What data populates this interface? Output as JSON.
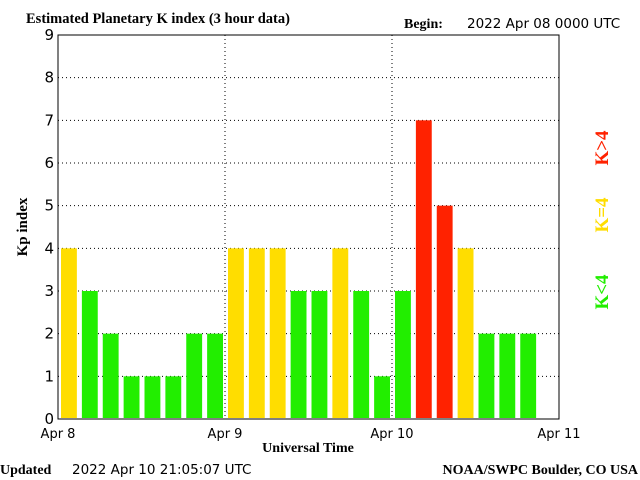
{
  "header": {
    "title": "Estimated Planetary K index (3 hour data)",
    "begin_label": "Begin:",
    "begin_value": "2022 Apr 08 0000 UTC"
  },
  "footer": {
    "updated_label": "Updated",
    "updated_value": "2022 Apr 10 21:05:07 UTC",
    "credit": "NOAA/SWPC Boulder, CO USA"
  },
  "legend": {
    "above": "K>4",
    "equal": "K=4",
    "below": "K<4"
  },
  "colors": {
    "below": "#22ee00",
    "equal": "#ffdd00",
    "above": "#ff2200",
    "background": "#ffffff",
    "axes": "#000000"
  },
  "chart_data": {
    "type": "bar",
    "title": "Estimated Planetary K index (3 hour data)",
    "xlabel": "Universal Time",
    "ylabel": "Kp index",
    "ylim": [
      0,
      9
    ],
    "yticks": [
      0,
      1,
      2,
      3,
      4,
      5,
      6,
      7,
      8,
      9
    ],
    "xticks": [
      "Apr 8",
      "Apr 9",
      "Apr 10",
      "Apr 11"
    ],
    "interval_hours": 3,
    "grid": true,
    "categories": [
      "2022-04-08 00:00",
      "2022-04-08 03:00",
      "2022-04-08 06:00",
      "2022-04-08 09:00",
      "2022-04-08 12:00",
      "2022-04-08 15:00",
      "2022-04-08 18:00",
      "2022-04-08 21:00",
      "2022-04-09 00:00",
      "2022-04-09 03:00",
      "2022-04-09 06:00",
      "2022-04-09 09:00",
      "2022-04-09 12:00",
      "2022-04-09 15:00",
      "2022-04-09 18:00",
      "2022-04-09 21:00",
      "2022-04-10 00:00",
      "2022-04-10 03:00",
      "2022-04-10 06:00",
      "2022-04-10 09:00",
      "2022-04-10 12:00",
      "2022-04-10 15:00",
      "2022-04-10 18:00"
    ],
    "values": [
      4,
      3,
      2,
      1,
      1,
      1,
      2,
      2,
      4,
      4,
      4,
      3,
      3,
      4,
      3,
      1,
      3,
      7,
      5,
      4,
      2,
      2,
      2
    ]
  }
}
